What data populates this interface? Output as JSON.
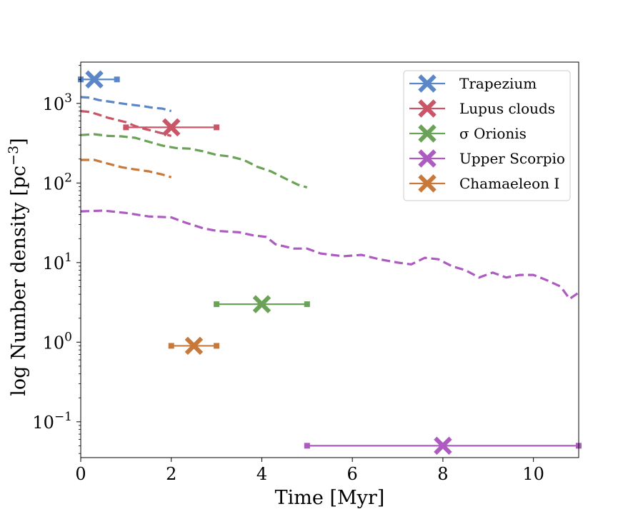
{
  "chart_data": {
    "type": "scatter",
    "title": "",
    "xlabel": "Time [Myr]",
    "ylabel": "log Number density [pc",
    "ylabel_sup": "−3",
    "ylabel_close": "]",
    "xlim": [
      0,
      11
    ],
    "ylim_log10": [
      -1.45,
      0.0
    ],
    "yscale": "log",
    "legend_position": "upper right",
    "x_ticks": [
      {
        "value": 0,
        "label": "0"
      },
      {
        "value": 2,
        "label": "2"
      },
      {
        "value": 4,
        "label": "4"
      },
      {
        "value": 6,
        "label": "6"
      },
      {
        "value": 8,
        "label": "8"
      },
      {
        "value": 10,
        "label": "10"
      }
    ],
    "y_ticks": [
      {
        "value": 0.1,
        "base": "10",
        "exp": "−1"
      },
      {
        "value": 1,
        "base": "10",
        "exp": "0"
      },
      {
        "value": 10,
        "base": "10",
        "exp": "1"
      },
      {
        "value": 100,
        "base": "10",
        "exp": "2"
      },
      {
        "value": 1000,
        "base": "10",
        "exp": "3"
      }
    ],
    "series": [
      {
        "name": "Trapezium",
        "color": "#5b86c8",
        "observed": {
          "x": 0.3,
          "y": 2000,
          "xmin": 0.0,
          "xmax": 0.8
        },
        "model_curve": [
          [
            0,
            1200
          ],
          [
            0.2,
            1180
          ],
          [
            0.4,
            1100
          ],
          [
            0.6,
            1060
          ],
          [
            0.8,
            1020
          ],
          [
            1.0,
            980
          ],
          [
            1.2,
            950
          ],
          [
            1.4,
            920
          ],
          [
            1.6,
            880
          ],
          [
            1.8,
            860
          ],
          [
            2.0,
            800
          ]
        ]
      },
      {
        "name": "Lupus clouds",
        "color": "#c95567",
        "observed": {
          "x": 2.0,
          "y": 500,
          "xmin": 1.0,
          "xmax": 3.0
        },
        "model_curve": [
          [
            0,
            800
          ],
          [
            0.2,
            780
          ],
          [
            0.4,
            720
          ],
          [
            0.6,
            660
          ],
          [
            0.8,
            620
          ],
          [
            1.0,
            580
          ],
          [
            1.2,
            520
          ],
          [
            1.4,
            480
          ],
          [
            1.6,
            450
          ],
          [
            1.8,
            420
          ],
          [
            2.0,
            390
          ]
        ]
      },
      {
        "name": "σ Orionis",
        "color": "#6aa257",
        "observed": {
          "x": 4.0,
          "y": 3.0,
          "xmin": 3.0,
          "xmax": 5.0
        },
        "model_curve": [
          [
            0,
            400
          ],
          [
            0.3,
            410
          ],
          [
            0.6,
            390
          ],
          [
            0.9,
            385
          ],
          [
            1.2,
            370
          ],
          [
            1.5,
            330
          ],
          [
            1.8,
            295
          ],
          [
            2.1,
            275
          ],
          [
            2.4,
            270
          ],
          [
            2.7,
            250
          ],
          [
            3.0,
            225
          ],
          [
            3.3,
            215
          ],
          [
            3.6,
            195
          ],
          [
            3.9,
            160
          ],
          [
            4.2,
            140
          ],
          [
            4.5,
            115
          ],
          [
            4.8,
            95
          ],
          [
            5.0,
            88
          ]
        ]
      },
      {
        "name": "Upper Scorpio",
        "color": "#ad5bc1",
        "observed": {
          "x": 8.0,
          "y": 0.05,
          "xmin": 5.0,
          "xmax": 11.0
        },
        "model_curve": [
          [
            0,
            44
          ],
          [
            0.5,
            45
          ],
          [
            1.0,
            42
          ],
          [
            1.5,
            38
          ],
          [
            2.0,
            37
          ],
          [
            2.3,
            32
          ],
          [
            2.7,
            27
          ],
          [
            3.0,
            25
          ],
          [
            3.5,
            24
          ],
          [
            3.8,
            22
          ],
          [
            4.1,
            21
          ],
          [
            4.3,
            17
          ],
          [
            4.7,
            15
          ],
          [
            5.0,
            15
          ],
          [
            5.3,
            13
          ],
          [
            5.8,
            12
          ],
          [
            6.2,
            12.5
          ],
          [
            6.6,
            11
          ],
          [
            7.0,
            10
          ],
          [
            7.3,
            9.5
          ],
          [
            7.6,
            11.5
          ],
          [
            7.9,
            11
          ],
          [
            8.2,
            9
          ],
          [
            8.5,
            8
          ],
          [
            8.8,
            6.5
          ],
          [
            9.1,
            7.5
          ],
          [
            9.4,
            6.5
          ],
          [
            9.7,
            7
          ],
          [
            10.0,
            7
          ],
          [
            10.3,
            6
          ],
          [
            10.6,
            5
          ],
          [
            10.8,
            3.5
          ],
          [
            11.0,
            4.2
          ]
        ]
      },
      {
        "name": "Chamaeleon I",
        "color": "#c8793a",
        "observed": {
          "x": 2.5,
          "y": 0.9,
          "xmin": 2.0,
          "xmax": 3.0
        },
        "model_curve": [
          [
            0,
            195
          ],
          [
            0.3,
            195
          ],
          [
            0.6,
            175
          ],
          [
            0.9,
            158
          ],
          [
            1.2,
            148
          ],
          [
            1.5,
            140
          ],
          [
            1.8,
            128
          ],
          [
            2.0,
            118
          ]
        ]
      }
    ]
  }
}
